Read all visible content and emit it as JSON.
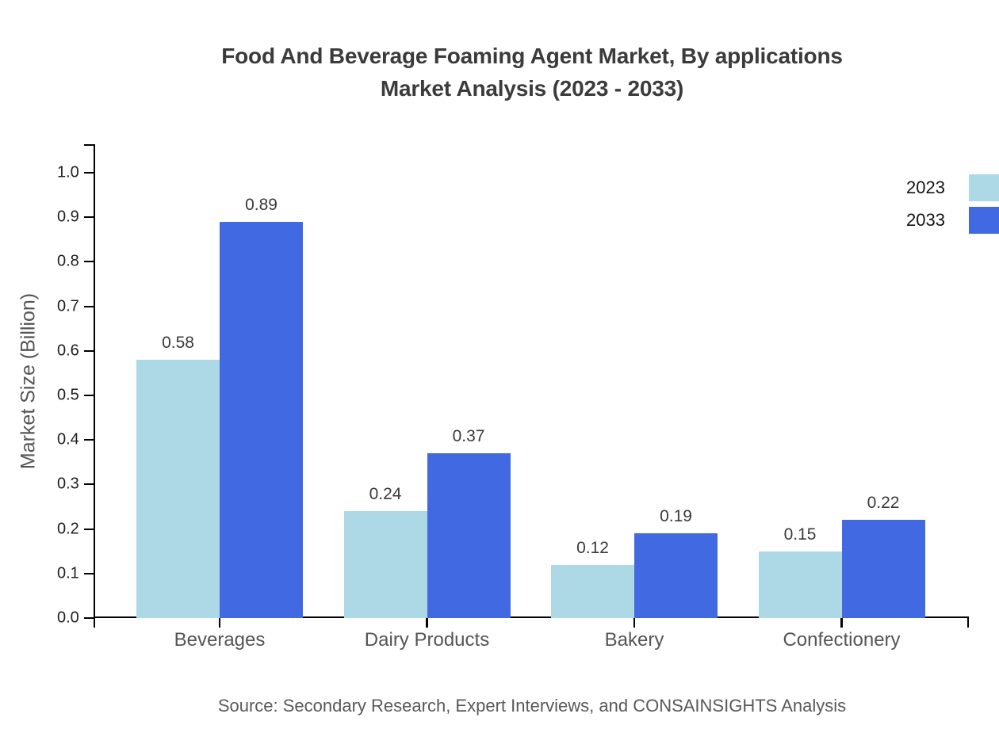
{
  "header": {
    "title_line1": "Food And Beverage Foaming Agent Market, By applications",
    "title_line2": "Market Analysis (2023 - 2033)"
  },
  "footer": {
    "source": "Source: Secondary Research, Expert Interviews, and CONSAINSIGHTS Analysis"
  },
  "colors": {
    "series_2023": "#ADD8E6",
    "series_2033": "#4169E1",
    "axis": "#000000",
    "title_text": "#3b3b3b",
    "label_text": "#555555",
    "source_text": "#595959"
  },
  "chart_data": {
    "type": "bar",
    "title": "Food And Beverage Foaming Agent Market, By applications Market Analysis (2023 - 2033)",
    "categories": [
      "Beverages",
      "Dairy Products",
      "Bakery",
      "Confectionery"
    ],
    "series": [
      {
        "name": "2023",
        "color": "#ADD8E6",
        "values": [
          0.58,
          0.24,
          0.12,
          0.15
        ]
      },
      {
        "name": "2033",
        "color": "#4169E1",
        "values": [
          0.89,
          0.37,
          0.19,
          0.22
        ]
      }
    ],
    "xlabel": "",
    "ylabel": "Market Size (Billion)",
    "ylim": [
      0.0,
      1.05
    ],
    "yticks": [
      "0.0",
      "0.1",
      "0.2",
      "0.3",
      "0.4",
      "0.5",
      "0.6",
      "0.7",
      "0.8",
      "0.9",
      "1.0"
    ],
    "grid": false,
    "value_labels": true,
    "legend_position": "top-right"
  }
}
